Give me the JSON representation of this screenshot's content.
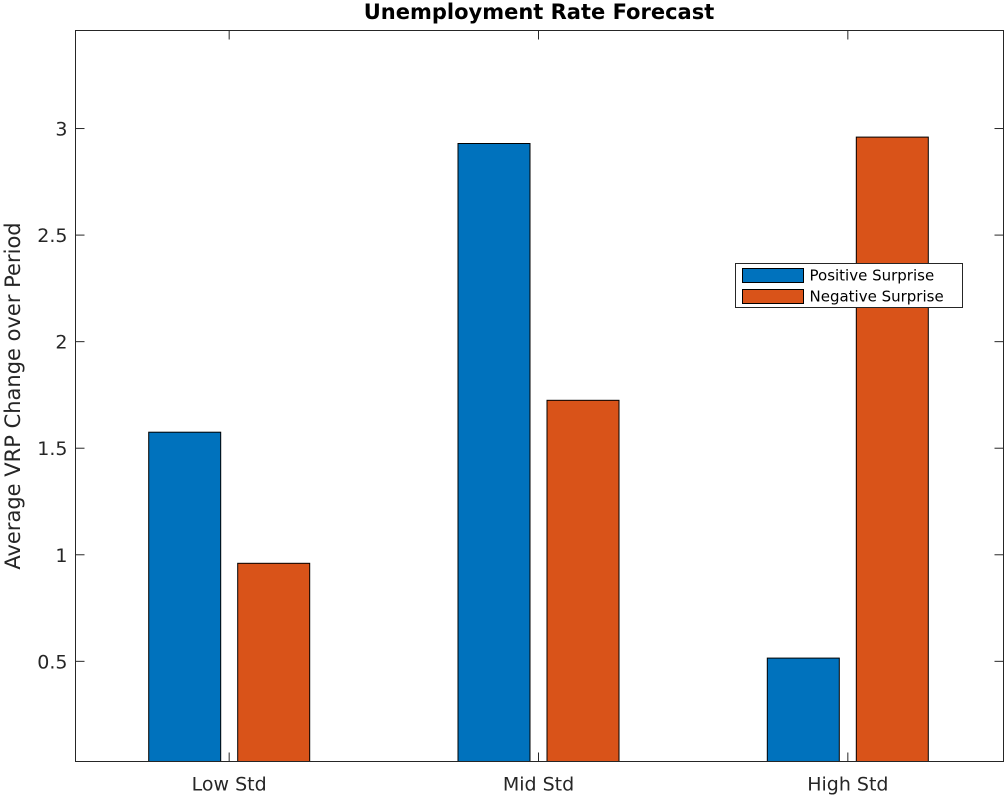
{
  "chart_data": {
    "type": "bar",
    "title": "Unemployment Rate Forecast",
    "xlabel": "",
    "ylabel": "Average VRP Change over Period",
    "categories": [
      "Low Std",
      "Mid Std",
      "High Std"
    ],
    "series": [
      {
        "name": "Positive Surprise",
        "values": [
          1.575,
          2.93,
          0.515
        ],
        "color": "#0072BD"
      },
      {
        "name": "Negative Surprise",
        "values": [
          0.96,
          1.725,
          2.96
        ],
        "color": "#D95319"
      }
    ],
    "ylim": [
      0.03,
      3.46
    ],
    "yticks": [
      0.5,
      1,
      1.5,
      2,
      2.5,
      3
    ],
    "ytick_labels": [
      "0.5",
      "1",
      "1.5",
      "2",
      "2.5",
      "3"
    ],
    "legend_position": "upper-right",
    "grid": false
  }
}
